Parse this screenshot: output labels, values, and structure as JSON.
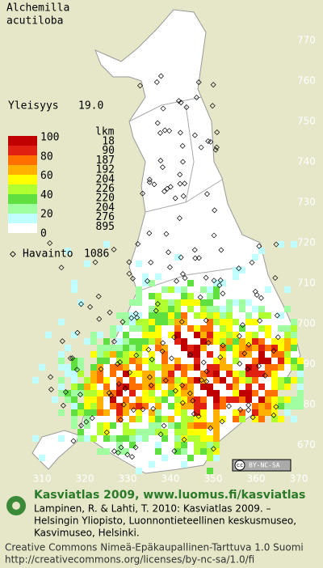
{
  "title": {
    "genus": "Alchemilla",
    "species": "acutiloba"
  },
  "frequency": {
    "label": "Yleisyys",
    "value": "19.0"
  },
  "legend": {
    "count_header": "lkm",
    "scale": [
      100,
      80,
      60,
      40,
      20,
      0
    ],
    "counts": [
      18,
      90,
      187,
      192,
      204,
      226,
      220,
      204,
      276,
      895
    ],
    "observations": {
      "label": "Havainto",
      "value": 1086
    }
  },
  "grid": {
    "northing": [
      770,
      760,
      750,
      740,
      730,
      720,
      710,
      700,
      690,
      680,
      670
    ],
    "easting": [
      310,
      320,
      330,
      340,
      350,
      360,
      370
    ]
  },
  "license_badge": {
    "symbol": "cc",
    "text": "BY-NC-SA"
  },
  "footer": {
    "heading": "Kasviatlas 2009, www.luomus.fi/kasviatlas",
    "citation": [
      "Lampinen, R. & Lahti, T. 2010: Kasviatlas 2009. –",
      "Helsingin Yliopisto, Luonnontieteellinen keskusmuseo,",
      "Kasvimuseo, Helsinki."
    ],
    "license": [
      "Creative Commons Nimeä-Epäkaupallinen-Tarttuva 1.0 Suomi",
      "http://creativecommons.org/licenses/by-nc-sa/1.0/fi"
    ]
  }
}
